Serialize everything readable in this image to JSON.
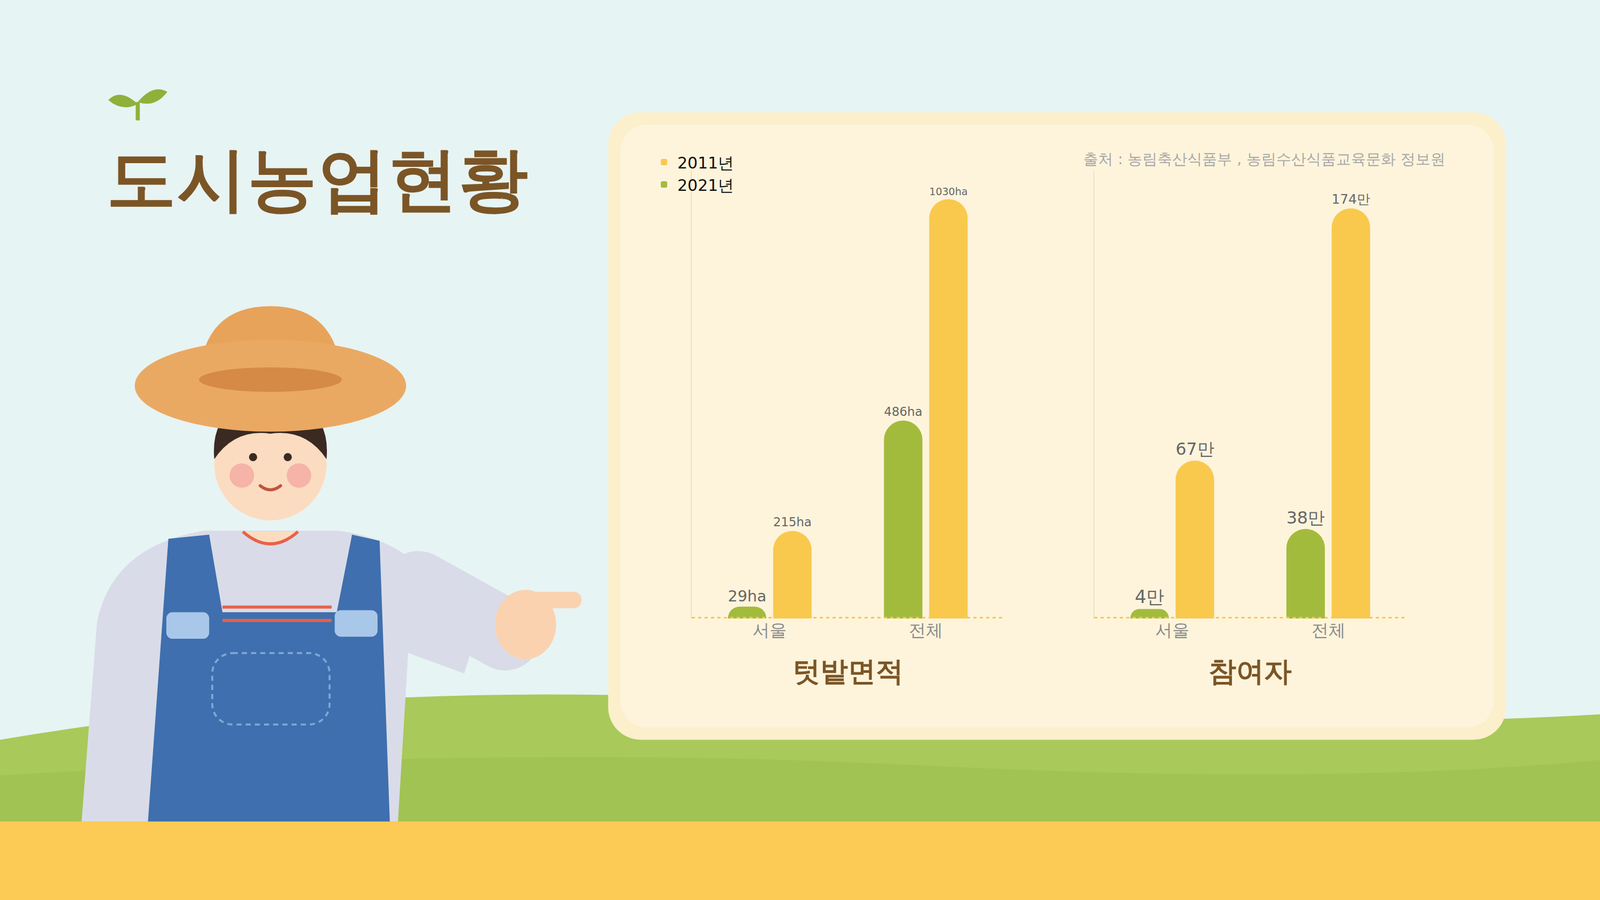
{
  "title": "도시농업현황",
  "source": "출처 : 농림축산식품부 , 농림수산식품교육문화 정보원",
  "chart_data": [
    {
      "type": "bar",
      "xlabel": "텃밭면적",
      "categories": [
        "서울",
        "전체"
      ],
      "series": [
        {
          "name": "2011년",
          "color": "#f9c94e",
          "values": [
            215,
            1030
          ],
          "value_labels": [
            "215ha",
            "1030ha"
          ]
        },
        {
          "name": "2021년",
          "color": "#a3bb3d",
          "values": [
            29,
            486
          ],
          "value_labels": [
            "29ha",
            "486ha"
          ]
        }
      ],
      "ylim": [
        0,
        1100
      ],
      "tick_labels": "x",
      "data_labels": true,
      "grid": false,
      "legend": "top-left"
    },
    {
      "type": "bar",
      "xlabel": "참여자",
      "categories": [
        "서울",
        "전체"
      ],
      "series": [
        {
          "name": "2011년",
          "color": "#f9c94e",
          "values": [
            67,
            174
          ],
          "value_labels": [
            "67만",
            "174만"
          ]
        },
        {
          "name": "2021년",
          "color": "#a3bb3d",
          "values": [
            4,
            38
          ],
          "value_labels": [
            "4만",
            "38만"
          ]
        }
      ],
      "ylim": [
        0,
        190
      ],
      "tick_labels": "x",
      "data_labels": true,
      "grid": false
    }
  ]
}
